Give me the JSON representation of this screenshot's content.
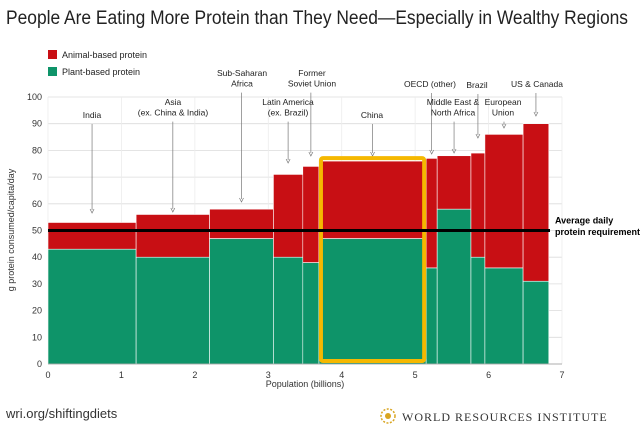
{
  "chart_data": {
    "type": "marimekko",
    "title": "People Are Eating More Protein than They Need—Especially in Wealthy Regions",
    "x_label": "Population (billions)",
    "y_label": "g protein consumed/capita/day",
    "categories": [
      "India",
      "Asia\n(ex. China & India)",
      "Sub-Saharan\nAfrica",
      "Latin America\n(ex. Brazil)",
      "Former\nSoviet Union",
      "China",
      "OECD (other)",
      "Middle East &\nNorth Africa",
      "Brazil",
      "European\nUnion",
      "US & Canada"
    ],
    "x_edges": [
      0,
      1.2,
      2.2,
      3.07,
      3.47,
      3.69,
      5.15,
      5.3,
      5.76,
      5.95,
      6.47,
      6.82
    ],
    "series": [
      {
        "name": "Plant-based protein",
        "color": "#0e9469",
        "values": [
          43,
          40,
          47,
          40,
          38,
          47,
          36,
          58,
          40,
          36,
          31
        ]
      },
      {
        "name": "Animal-based protein",
        "color": "#c80f14",
        "values": [
          10,
          16,
          11,
          31,
          36,
          29,
          41,
          20,
          39,
          50,
          59
        ]
      }
    ],
    "reference_line": {
      "value": 50,
      "label": "Average daily\nprotein requirement"
    },
    "highlight": "China",
    "xlim": [
      0,
      7
    ],
    "xticks": [
      0,
      1,
      2,
      3,
      4,
      5,
      6,
      7
    ],
    "ylim": [
      0,
      100
    ],
    "yticks": [
      0,
      10,
      20,
      30,
      40,
      50,
      60,
      70,
      80,
      90,
      100
    ],
    "grid": true
  },
  "footer": {
    "url": "wri.org/shiftingdiets",
    "organization": "WORLD RESOURCES INSTITUTE"
  }
}
